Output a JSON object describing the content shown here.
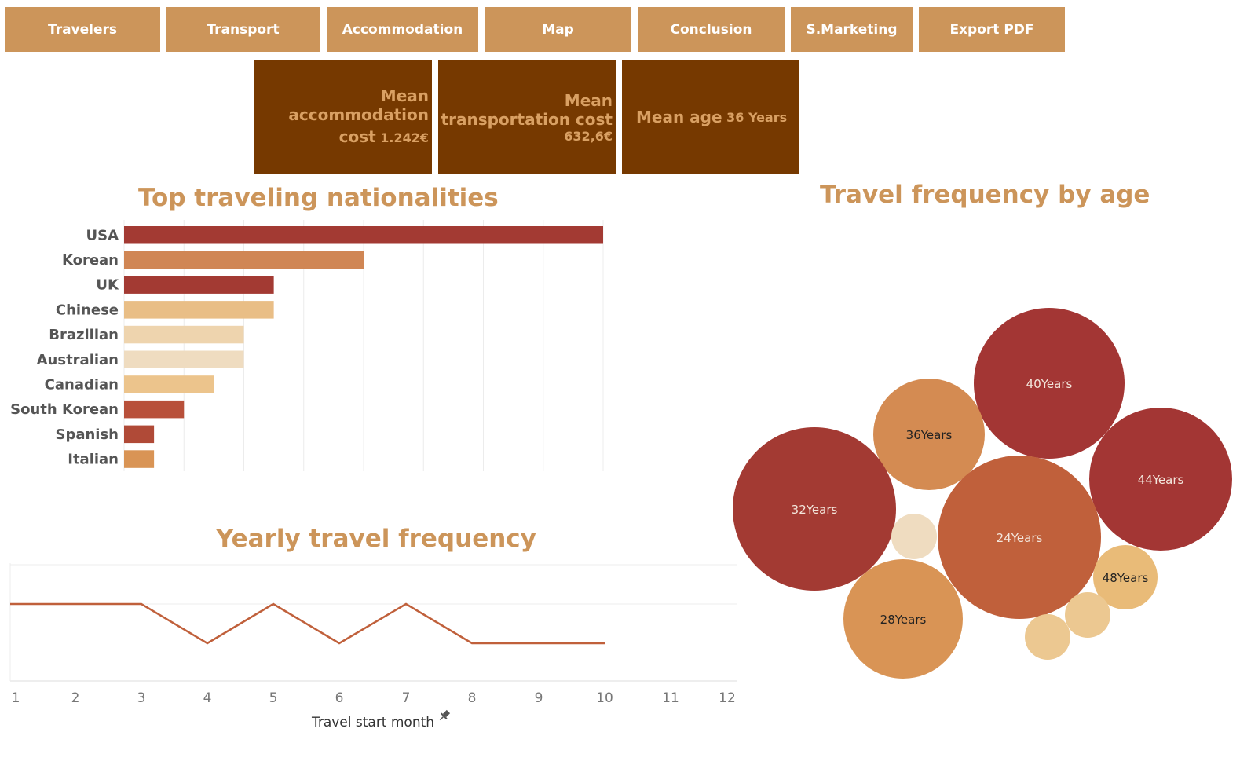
{
  "nav": {
    "travelers": "Travelers",
    "transport": "Transport",
    "accommodation": "Accommodation",
    "map": "Map",
    "conclusion": "Conclusion",
    "smarketing": "S.Marketing",
    "export": "Export PDF"
  },
  "kpis": {
    "accommodation": {
      "line1": "Mean",
      "line2": "accommodation",
      "line3": "cost",
      "value": "1.242€"
    },
    "transport": {
      "line1": "Mean",
      "line2": "transportation cost",
      "value": "632,6€"
    },
    "age": {
      "label": "Mean age",
      "value": "36 Years"
    }
  },
  "colors": {
    "nav_bg": "#cc955a",
    "kpi_bg": "#763900",
    "kpi_text": "#d9a063",
    "title": "#cc955a",
    "line": "#c0603b"
  },
  "chart_data": [
    {
      "type": "bar",
      "orientation": "horizontal",
      "title": "Top traveling nationalities",
      "categories": [
        "USA",
        "Korean",
        "UK",
        "Chinese",
        "Brazilian",
        "Australian",
        "Canadian",
        "South Korean",
        "Spanish",
        "Italian"
      ],
      "values": [
        16,
        8,
        5,
        5,
        4,
        4,
        3,
        2,
        1,
        1
      ],
      "colors": [
        "#a33a33",
        "#d08654",
        "#a33a33",
        "#e9be86",
        "#eed4ae",
        "#efdcc0",
        "#ecc48c",
        "#b8503a",
        "#b04a37",
        "#d99455"
      ],
      "xlim": [
        0,
        16
      ],
      "grid": true
    },
    {
      "type": "line",
      "title": "Yearly travel frequency",
      "xlabel": "Travel start month",
      "x": [
        1,
        2,
        3,
        4,
        5,
        6,
        7,
        8,
        9,
        10
      ],
      "values": [
        2,
        2,
        2,
        1,
        2,
        1,
        2,
        1,
        1,
        1
      ],
      "xticks": [
        "1",
        "2",
        "3",
        "4",
        "5",
        "6",
        "7",
        "8",
        "9",
        "10",
        "11",
        "12"
      ],
      "xlim": [
        1,
        12
      ],
      "ylim": [
        0,
        3
      ],
      "grid": true,
      "color": "#c0603b"
    },
    {
      "type": "bubble",
      "title": "Travel frequency by age",
      "bubbles": [
        {
          "label": "40Years",
          "color": "#a33634",
          "label_color": "#f3e6dc"
        },
        {
          "label": "36Years",
          "color": "#d48b52",
          "label_color": "#222222"
        },
        {
          "label": "44Years",
          "color": "#a33634",
          "label_color": "#f3e6dc"
        },
        {
          "label": "32Years",
          "color": "#a33a33",
          "label_color": "#f3e6dc"
        },
        {
          "label": "24Years",
          "color": "#c0603b",
          "label_color": "#f3e6dc"
        },
        {
          "label": "",
          "color": "#efdcc0",
          "label_color": "#222222"
        },
        {
          "label": "48Years",
          "color": "#e9bb78",
          "label_color": "#222222"
        },
        {
          "label": "28Years",
          "color": "#d99455",
          "label_color": "#222222"
        },
        {
          "label": "",
          "color": "#ecc891",
          "label_color": "#222222"
        },
        {
          "label": "",
          "color": "#ecc891",
          "label_color": "#222222"
        }
      ]
    }
  ]
}
